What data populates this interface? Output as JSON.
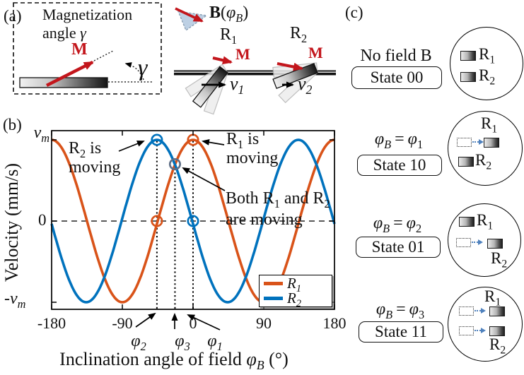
{
  "colors": {
    "r1_orange": "#d95319",
    "r2_blue": "#0072bd",
    "red_arrow": "#c3161c",
    "mini_arrow": "#4f81bd",
    "both_marker": "#5f6f87",
    "field_triangle": "#bdd0e4"
  },
  "panel_a": {
    "label": "(a)",
    "title_line1": "Magnetization",
    "title_line2": "angle ",
    "gamma": "γ",
    "m_label": "M"
  },
  "illustration": {
    "field_b": "B",
    "field_open": "(",
    "field_phi": "φ",
    "field_sub": "B",
    "field_close": ")",
    "r1_base": "R",
    "r1_sub": "1",
    "r2_base": "R",
    "r2_sub": "2",
    "m1": "M",
    "m2": "M",
    "v1_base": "v",
    "v1_sub": "1",
    "v2_base": "v",
    "v2_sub": "2"
  },
  "panel_b": {
    "label": "(b)",
    "y_top_base": "v",
    "y_top_sub": "m",
    "y_zero": "0",
    "y_bottom_base": "-v",
    "y_bottom_sub": "m",
    "y_title": "Velocity  (mm/s)",
    "x_title_pre": "Inclination angle of field ",
    "x_title_sym": "φ",
    "x_title_sub": "B",
    "x_title_post": " (°)",
    "ann_r2_pre": "R",
    "ann_r2_sub": "2",
    "ann_r2_post": " is",
    "ann_r2_l2": "moving",
    "ann_r1_pre": "R",
    "ann_r1_sub": "1",
    "ann_r1_post": " is",
    "ann_r1_l2": "moving",
    "ann_both_pre": "Both R",
    "ann_both_sub1": "1",
    "ann_both_mid": " and R",
    "ann_both_sub2": "2",
    "ann_both_l2": "are moving",
    "phi2_base": "φ",
    "phi2_sub": "2",
    "phi3_base": "φ",
    "phi3_sub": "3",
    "phi1_base": "φ",
    "phi1_sub": "1",
    "legend": [
      {
        "base": "R",
        "sub": "1"
      },
      {
        "base": "R",
        "sub": "2"
      }
    ]
  },
  "panel_c": {
    "label": "(c)",
    "r1_base": "R",
    "r1_sub": "1",
    "r2_base": "R",
    "r2_sub": "2",
    "states": [
      {
        "condition": "No field B",
        "state": "State 00",
        "r1_moving": false,
        "r2_moving": false
      },
      {
        "cond_sym": "φ",
        "cond_sym_sub": "B",
        "cond_eq": "=",
        "cond_val": "φ",
        "cond_val_sub": "1",
        "state": "State 10",
        "r1_moving": true,
        "r2_moving": false
      },
      {
        "cond_sym": "φ",
        "cond_sym_sub": "B",
        "cond_eq": "=",
        "cond_val": "φ",
        "cond_val_sub": "2",
        "state": "State 01",
        "r1_moving": false,
        "r2_moving": true
      },
      {
        "cond_sym": "φ",
        "cond_sym_sub": "B",
        "cond_eq": "=",
        "cond_val": "φ",
        "cond_val_sub": "3",
        "state": "State 11",
        "r1_moving": true,
        "r2_moving": true
      }
    ]
  },
  "chart_data": {
    "type": "line",
    "title": "",
    "xlabel": "Inclination angle of field φB (°)",
    "ylabel": "Velocity (mm/s)",
    "x_range": [
      -180,
      180
    ],
    "x_ticks": [
      -180,
      -90,
      0,
      90,
      180
    ],
    "y_tick_labels": [
      "vm",
      "0",
      "-vm"
    ],
    "amplitude_label": "vm",
    "period_deg": 180,
    "grid": false,
    "zero_line_dashed": true,
    "series": [
      {
        "name": "R1",
        "color": "#d95319",
        "model": "vm·cos(2(φB−φ1))",
        "peak_deg": 0
      },
      {
        "name": "R2",
        "color": "#0072bd",
        "model": "vm·cos(2(φB−φ2))",
        "peak_deg": -46
      }
    ],
    "key_angles": {
      "phi1": 0,
      "phi2": -46,
      "phi3": -23
    },
    "dotted_lines_x": [
      -46,
      -23,
      0
    ],
    "markers": [
      {
        "series": "R2",
        "x_deg": -46,
        "y_vm": 1
      },
      {
        "series": "R1",
        "x_deg": 0,
        "y_vm": 1
      },
      {
        "series": "R1",
        "x_deg": -46,
        "y_vm": 0
      },
      {
        "series": "R2",
        "x_deg": 0,
        "y_vm": 0
      },
      {
        "series": "both",
        "x_deg": -23,
        "y_vm": 0.7
      }
    ],
    "legend": [
      "R1",
      "R2"
    ],
    "legend_position": "lower right"
  }
}
